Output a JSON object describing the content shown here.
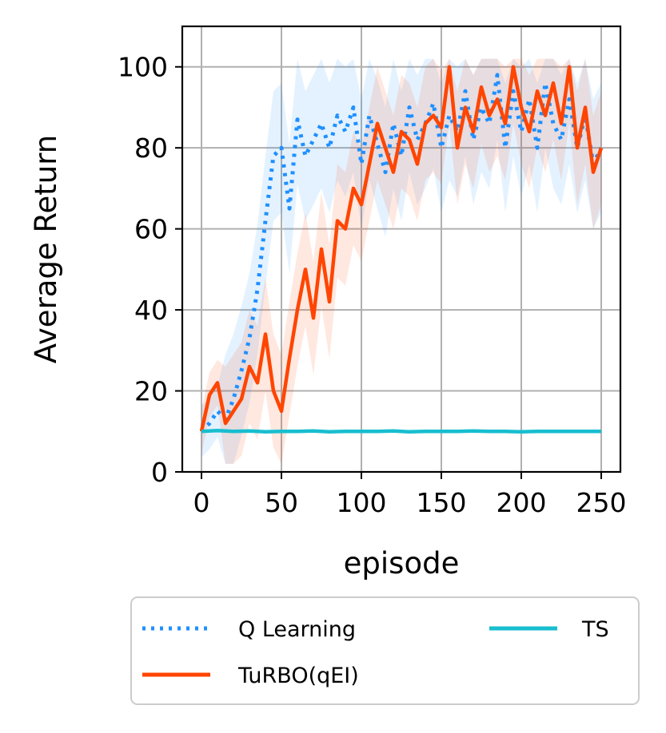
{
  "chart_data": {
    "type": "line",
    "title": "",
    "xlabel": "episode",
    "ylabel": "Average Return",
    "xlim": [
      -12,
      262
    ],
    "ylim": [
      0,
      110
    ],
    "xticks": [
      0,
      50,
      100,
      150,
      200,
      250
    ],
    "yticks": [
      0,
      20,
      40,
      60,
      80,
      100
    ],
    "grid": true,
    "legend_position": "below",
    "series": [
      {
        "name": "Q Learning",
        "color": "#1e90ff",
        "style": "dotted",
        "x": [
          0,
          5,
          10,
          15,
          20,
          25,
          30,
          35,
          40,
          45,
          50,
          55,
          60,
          65,
          70,
          75,
          80,
          85,
          90,
          95,
          100,
          105,
          110,
          115,
          120,
          125,
          130,
          135,
          140,
          145,
          150,
          155,
          160,
          165,
          170,
          175,
          180,
          185,
          190,
          195,
          200,
          205,
          210,
          215,
          220,
          225,
          230,
          235,
          240,
          245,
          250
        ],
        "y": [
          10,
          12,
          15,
          13,
          18,
          25,
          33,
          45,
          62,
          78,
          80,
          65,
          87,
          78,
          82,
          86,
          80,
          88,
          84,
          90,
          76,
          88,
          81,
          74,
          86,
          78,
          90,
          82,
          86,
          91,
          80,
          88,
          84,
          94,
          82,
          90,
          86,
          98,
          80,
          94,
          84,
          92,
          80,
          96,
          86,
          82,
          92,
          80,
          88,
          76,
          80
        ]
      },
      {
        "name": "TuRBO(qEI)",
        "color": "#ff4500",
        "style": "solid",
        "x": [
          0,
          5,
          10,
          15,
          20,
          25,
          30,
          35,
          40,
          45,
          50,
          55,
          60,
          65,
          70,
          75,
          80,
          85,
          90,
          95,
          100,
          105,
          110,
          115,
          120,
          125,
          130,
          135,
          140,
          145,
          150,
          155,
          160,
          165,
          170,
          175,
          180,
          185,
          190,
          195,
          200,
          205,
          210,
          215,
          220,
          225,
          230,
          235,
          240,
          245,
          250
        ],
        "y": [
          10,
          19,
          22,
          12,
          15,
          18,
          26,
          22,
          34,
          20,
          15,
          28,
          40,
          50,
          38,
          55,
          42,
          62,
          60,
          70,
          66,
          76,
          86,
          80,
          74,
          84,
          82,
          76,
          86,
          88,
          85,
          100,
          80,
          90,
          84,
          95,
          88,
          92,
          86,
          100,
          90,
          84,
          94,
          88,
          96,
          86,
          100,
          80,
          90,
          74,
          80
        ]
      },
      {
        "name": "TS",
        "color": "#17becf",
        "style": "solid",
        "x": [
          0,
          10,
          20,
          30,
          40,
          50,
          60,
          70,
          80,
          90,
          100,
          110,
          120,
          130,
          140,
          150,
          160,
          170,
          180,
          190,
          200,
          210,
          220,
          230,
          240,
          250
        ],
        "y": [
          10,
          10.2,
          10.0,
          10.1,
          9.9,
          10.0,
          10.0,
          10.1,
          9.9,
          10.0,
          10.0,
          10.0,
          10.1,
          9.9,
          10.0,
          10.0,
          10.0,
          10.1,
          10.0,
          10.0,
          9.9,
          10.0,
          10.0,
          10.0,
          10.0,
          10.0
        ]
      }
    ]
  }
}
